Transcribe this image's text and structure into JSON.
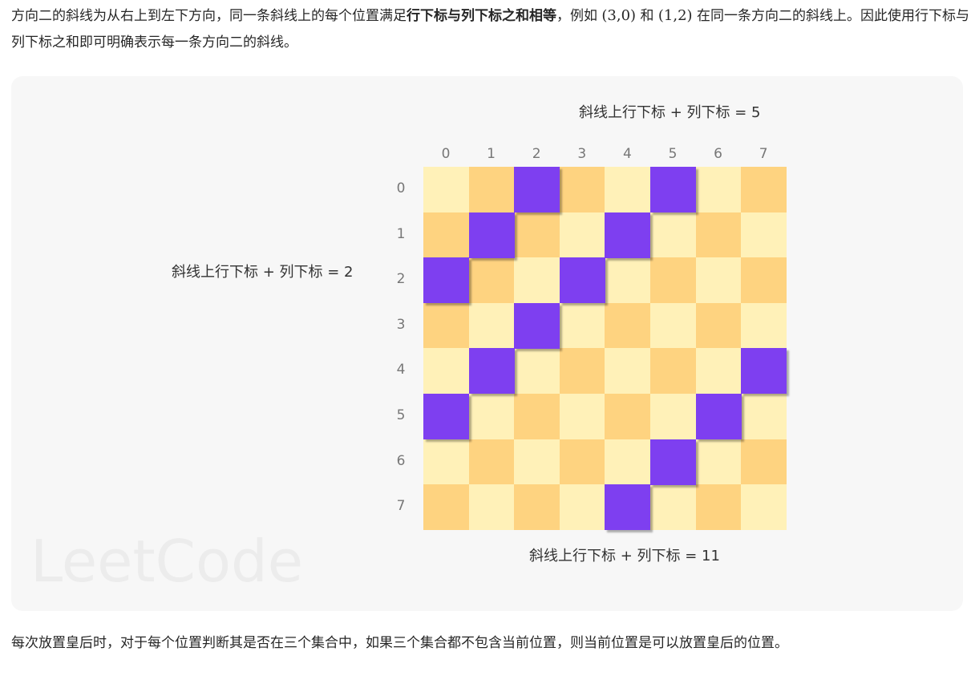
{
  "intro": {
    "part1": "方向二的斜线为从右上到左下方向，同一条斜线上的每个位置满足",
    "bold": "行下标与列下标之和相等",
    "part2": "，例如 ",
    "math1": "(3,0)",
    "part3": " 和 ",
    "math2": "(1,2)",
    "part4": " 在同一条方向二的斜线上。因此使用行下标与列下标之和即可明确表示每一条方向二的斜线。"
  },
  "figure": {
    "label_top": "斜线上行下标 + 列下标 = 5",
    "label_left": "斜线上行下标 + 列下标 = 2",
    "label_bottom": "斜线上行下标 + 列下标 = 11",
    "watermark": "LeetCode",
    "col_indices": [
      "0",
      "1",
      "2",
      "3",
      "4",
      "5",
      "6",
      "7"
    ],
    "row_indices": [
      "0",
      "1",
      "2",
      "3",
      "4",
      "5",
      "6",
      "7"
    ],
    "highlighted_diagonal_sums": [
      2,
      5,
      11
    ],
    "colors": {
      "light": "#fff1b8",
      "dark": "#fed380",
      "highlight": "#7e3ff0",
      "background": "#f7f7f7"
    }
  },
  "outro": {
    "text": "每次放置皇后时，对于每个位置判断其是否在三个集合中，如果三个集合都不包含当前位置，则当前位置是可以放置皇后的位置。"
  }
}
